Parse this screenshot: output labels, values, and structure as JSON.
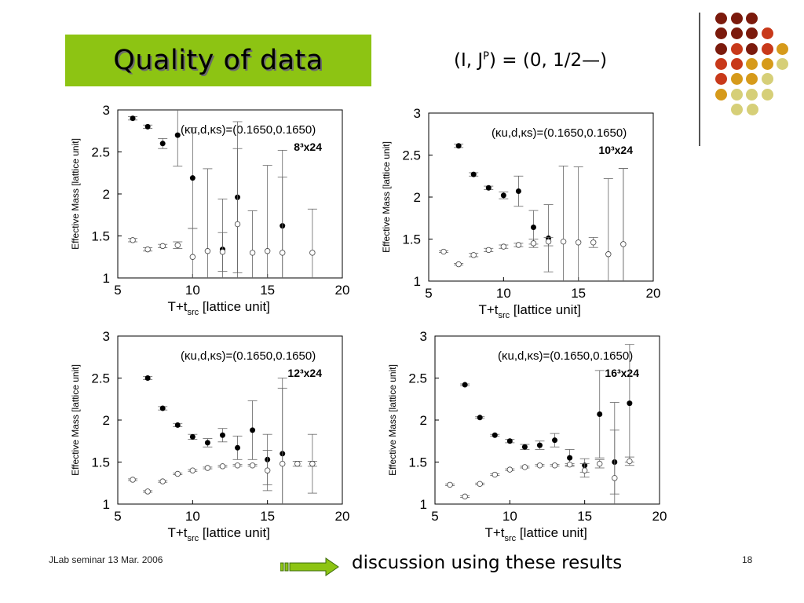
{
  "slide": {
    "title": "Quality of data",
    "subtitle_prefix": "(I, J",
    "subtitle_sup": "P",
    "subtitle_suffix": ") = (0, 1/2—)",
    "footer_left": "JLab seminar 13 Mar. 2006",
    "footer_right": "18",
    "discussion": "discussion using these results",
    "colors": {
      "title_bg": "#8dc413",
      "dot_dark": "#7b1a0c",
      "dot_red": "#c8391a",
      "dot_orange": "#d69a1a",
      "dot_olive": "#d6cf78",
      "arrow": "#8dc413"
    }
  },
  "chart_data": [
    {
      "type": "scatter",
      "label": "(κu,d,κs)=(0.1650,0.1650)",
      "lattice": "8³x24",
      "xlabel": "T+t_src  [lattice unit]",
      "ylabel": "Effective Mass [lattice unit]",
      "xlim": [
        5,
        20
      ],
      "ylim": [
        1,
        3
      ],
      "xticks": [
        5,
        10,
        15,
        20
      ],
      "yticks": [
        1,
        1.5,
        2,
        2.5,
        3
      ],
      "series": [
        {
          "marker": "filled",
          "points": [
            [
              6,
              2.9,
              0.02
            ],
            [
              7,
              2.8,
              0.02
            ],
            [
              8,
              2.6,
              0.06
            ],
            [
              9,
              2.7,
              0.37
            ],
            [
              10,
              2.19,
              0.6
            ],
            [
              12,
              1.34,
              0.6
            ],
            [
              13,
              1.96,
              0.9
            ],
            [
              16,
              1.62,
              0.9
            ]
          ]
        },
        {
          "marker": "open",
          "points": [
            [
              6,
              1.45,
              0.02
            ],
            [
              7,
              1.34,
              0.02
            ],
            [
              8,
              1.38,
              0.02
            ],
            [
              9,
              1.39,
              0.04
            ],
            [
              10,
              1.25,
              0.34
            ],
            [
              11,
              1.32,
              0.98
            ],
            [
              12,
              1.31,
              0.23
            ],
            [
              13,
              1.64,
              0.9
            ],
            [
              14,
              1.3,
              0.5
            ],
            [
              15,
              1.32,
              1.02
            ],
            [
              16,
              1.3,
              0.9
            ],
            [
              18,
              1.3,
              0.52
            ]
          ]
        }
      ]
    },
    {
      "type": "scatter",
      "label": "(κu,d,κs)=(0.1650,0.1650)",
      "lattice": "10³x24",
      "xlabel": "T+t_src  [lattice unit]",
      "ylabel": "Effective Mass [lattice unit]",
      "xlim": [
        5,
        20
      ],
      "ylim": [
        1,
        3
      ],
      "xticks": [
        5,
        10,
        15,
        20
      ],
      "yticks": [
        1,
        1.5,
        2,
        2.5,
        3
      ],
      "series": [
        {
          "marker": "filled",
          "points": [
            [
              7,
              2.61,
              0.02
            ],
            [
              8,
              2.27,
              0.02
            ],
            [
              9,
              2.11,
              0.02
            ],
            [
              10,
              2.02,
              0.04
            ],
            [
              11,
              2.07,
              0.18
            ],
            [
              12,
              1.64,
              0.2
            ],
            [
              13,
              1.51,
              0.4
            ],
            [
              18,
              1.44,
              0.9
            ]
          ]
        },
        {
          "marker": "open",
          "points": [
            [
              6,
              1.35,
              0.01
            ],
            [
              7,
              1.2,
              0.01
            ],
            [
              8,
              1.31,
              0.02
            ],
            [
              9,
              1.37,
              0.02
            ],
            [
              10,
              1.41,
              0.02
            ],
            [
              11,
              1.43,
              0.02
            ],
            [
              12,
              1.45,
              0.05
            ],
            [
              13,
              1.47,
              0.05
            ],
            [
              14,
              1.47,
              0.9
            ],
            [
              15,
              1.46,
              0.9
            ],
            [
              16,
              1.46,
              0.06
            ],
            [
              17,
              1.32,
              0.9
            ],
            [
              18,
              1.44,
              0.9
            ]
          ]
        }
      ]
    },
    {
      "type": "scatter",
      "label": "(κu,d,κs)=(0.1650,0.1650)",
      "lattice": "12³x24",
      "xlabel": "T+t_src  [lattice unit]",
      "ylabel": "Effective Mass [lattice unit]",
      "xlim": [
        5,
        20
      ],
      "ylim": [
        1,
        3
      ],
      "xticks": [
        5,
        10,
        15,
        20
      ],
      "yticks": [
        1,
        1.5,
        2,
        2.5,
        3
      ],
      "series": [
        {
          "marker": "filled",
          "points": [
            [
              7,
              2.5,
              0.02
            ],
            [
              8,
              2.14,
              0.02
            ],
            [
              9,
              1.94,
              0.02
            ],
            [
              10,
              1.8,
              0.03
            ],
            [
              11,
              1.73,
              0.05
            ],
            [
              12,
              1.82,
              0.08
            ],
            [
              13,
              1.67,
              0.14
            ],
            [
              14,
              1.88,
              0.35
            ],
            [
              15,
              1.53,
              0.3
            ],
            [
              16,
              1.6,
              0.9
            ],
            [
              18,
              1.48,
              0.35
            ]
          ]
        },
        {
          "marker": "open",
          "points": [
            [
              6,
              1.29,
              0.01
            ],
            [
              7,
              1.15,
              0.01
            ],
            [
              8,
              1.27,
              0.01
            ],
            [
              9,
              1.36,
              0.01
            ],
            [
              10,
              1.4,
              0.01
            ],
            [
              11,
              1.43,
              0.01
            ],
            [
              12,
              1.45,
              0.01
            ],
            [
              13,
              1.46,
              0.01
            ],
            [
              14,
              1.46,
              0.01
            ],
            [
              15,
              1.4,
              0.24
            ],
            [
              16,
              1.48,
              0.9
            ],
            [
              17,
              1.48,
              0.03
            ],
            [
              18,
              1.48,
              0.03
            ]
          ]
        }
      ]
    },
    {
      "type": "scatter",
      "label": "(κu,d,κs)=(0.1650,0.1650)",
      "lattice": "16³x24",
      "xlabel": "T+t_src  [lattice unit]",
      "ylabel": "Effective Mass [lattice unit]",
      "xlim": [
        5,
        20
      ],
      "ylim": [
        1,
        3
      ],
      "xticks": [
        5,
        10,
        15,
        20
      ],
      "yticks": [
        1,
        1.5,
        2,
        2.5,
        3
      ],
      "series": [
        {
          "marker": "filled",
          "points": [
            [
              7,
              2.42,
              0.01
            ],
            [
              8,
              2.03,
              0.01
            ],
            [
              9,
              1.82,
              0.01
            ],
            [
              10,
              1.75,
              0.02
            ],
            [
              11,
              1.68,
              0.03
            ],
            [
              12,
              1.7,
              0.05
            ],
            [
              13,
              1.76,
              0.08
            ],
            [
              14,
              1.55,
              0.1
            ],
            [
              15,
              1.46,
              0.08
            ],
            [
              16,
              2.07,
              0.52
            ],
            [
              17,
              1.5,
              0.38
            ],
            [
              18,
              2.2,
              0.7
            ]
          ]
        },
        {
          "marker": "open",
          "points": [
            [
              6,
              1.23,
              0.01
            ],
            [
              7,
              1.09,
              0.01
            ],
            [
              8,
              1.24,
              0.01
            ],
            [
              9,
              1.35,
              0.01
            ],
            [
              10,
              1.41,
              0.01
            ],
            [
              11,
              1.44,
              0.01
            ],
            [
              12,
              1.46,
              0.01
            ],
            [
              13,
              1.46,
              0.01
            ],
            [
              14,
              1.47,
              0.01
            ],
            [
              15,
              1.4,
              0.08
            ],
            [
              16,
              1.48,
              0.05
            ],
            [
              17,
              1.31,
              0.9
            ],
            [
              18,
              1.51,
              0.05
            ]
          ]
        }
      ]
    }
  ]
}
